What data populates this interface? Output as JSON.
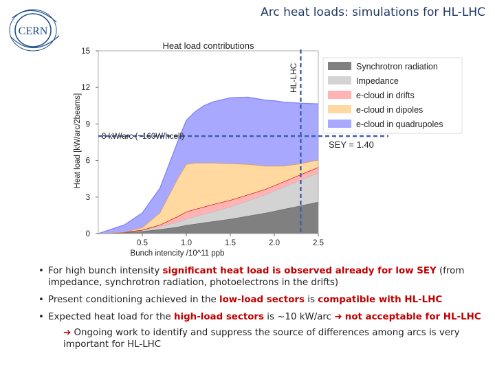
{
  "header": {
    "title": "Arc heat loads: simulations for HL-LHC",
    "logo_text": "CERN"
  },
  "chart_data": {
    "type": "area",
    "stacked": true,
    "title": "Heat load contributions",
    "xlabel": "Bunch intencity /10^11 ppb",
    "ylabel": "Heat load [kW/arc/2beams]",
    "xlim": [
      0.0,
      2.5
    ],
    "ylim": [
      0,
      15
    ],
    "xticks": [
      "0.5",
      "1.0",
      "1.5",
      "2.0",
      "2.5"
    ],
    "yticks": [
      "0",
      "3",
      "6",
      "9",
      "12",
      "15"
    ],
    "x": [
      0.0,
      0.3,
      0.5,
      0.7,
      0.9,
      1.0,
      1.1,
      1.2,
      1.3,
      1.5,
      1.7,
      1.9,
      2.0,
      2.1,
      2.2,
      2.3,
      2.5
    ],
    "series": [
      {
        "name": "Synchrotron radiation",
        "color": "#808080",
        "values": [
          0.0,
          0.1,
          0.2,
          0.35,
          0.55,
          0.7,
          0.8,
          0.9,
          1.0,
          1.2,
          1.45,
          1.7,
          1.85,
          2.0,
          2.15,
          2.3,
          2.6
        ]
      },
      {
        "name": "Impedance",
        "color": "#d3d3d3",
        "values": [
          0.0,
          0.03,
          0.1,
          0.22,
          0.4,
          0.5,
          0.6,
          0.7,
          0.8,
          1.0,
          1.25,
          1.5,
          1.65,
          1.8,
          1.95,
          2.1,
          2.4
        ]
      },
      {
        "name": "e-cloud in drifts",
        "color": "#ffb3b3",
        "values": [
          0.0,
          0.0,
          0.0,
          0.15,
          0.45,
          0.6,
          0.6,
          0.6,
          0.6,
          0.55,
          0.5,
          0.45,
          0.45,
          0.45,
          0.45,
          0.45,
          0.45
        ]
      },
      {
        "name": "e-cloud in dipoles",
        "color": "#ffd9a0",
        "values": [
          0.0,
          0.0,
          0.2,
          1.0,
          3.1,
          3.9,
          3.8,
          3.6,
          3.4,
          3.0,
          2.5,
          1.9,
          1.6,
          1.3,
          1.1,
          0.9,
          0.6
        ]
      },
      {
        "name": "e-cloud in quadrupoles",
        "color": "#a8a8ff",
        "values": [
          0.0,
          0.6,
          1.2,
          2.0,
          3.0,
          3.6,
          4.2,
          4.7,
          5.0,
          5.4,
          5.5,
          5.4,
          5.35,
          5.25,
          5.1,
          4.95,
          4.6
        ]
      }
    ],
    "annotations": {
      "sey": "SEY = 1.40",
      "hl_lhc_label": "HL-LHC",
      "hl_lhc_x": 2.3,
      "threshold_label": "8 kW/arc (~160W/hcell)",
      "threshold_y": 8.0
    },
    "legend_position": "right",
    "grid": false
  },
  "bullets": {
    "b1_pre": "For high bunch intensity ",
    "b1_red": "significant heat load is observed already for low SEY",
    "b1_post": " (from impedance, synchrotron radiation, photoelectrons in the drifts)",
    "b2_pre": "Present conditioning achieved in the ",
    "b2_red1": "low-load sectors",
    "b2_mid": " is ",
    "b2_red2": "compatible with HL-LHC",
    "b3_pre": "Expected heat load for the ",
    "b3_red1": "high-load sectors",
    "b3_mid": " is ~10 kW/arc ",
    "b3_red2": "not acceptable for HL-LHC",
    "sub": "Ongoing work to identify and suppress the source of differences among arcs is very important for HL-LHC"
  },
  "colors": {
    "title": "#1f3864",
    "emphasis": "#c00000",
    "marker_line": "#3a5fa8"
  }
}
